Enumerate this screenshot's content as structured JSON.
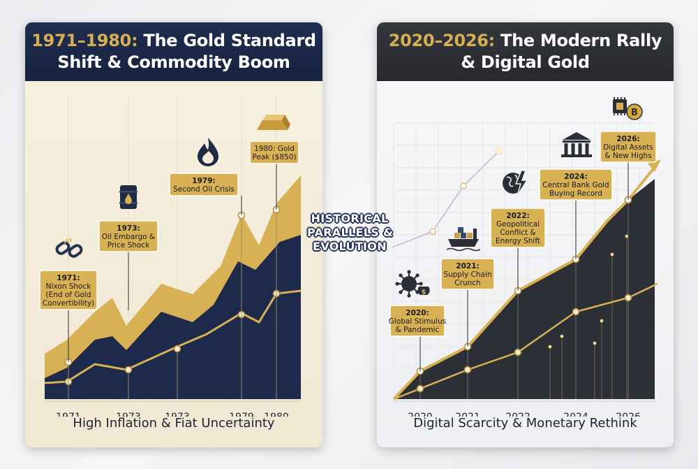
{
  "center_caption": [
    "HISTORICAL",
    "PARALLELS &",
    "EVOLUTION"
  ],
  "colors": {
    "gold": "#d9b155",
    "navy": "#1e2a4c",
    "charcoal": "#2c2f35",
    "marker_fill": "#f3ead0"
  },
  "chart_data": [
    {
      "type": "area",
      "title_lines": [
        "1971–1980: The Gold Standard",
        "Shift & Commodity Boom"
      ],
      "title_accent": "1971–1980:",
      "footer": "High Inflation & Fiat Uncertainty",
      "categories": [
        "1971",
        "1973",
        "1973",
        "1979",
        "1980"
      ],
      "callouts": [
        {
          "lines": [
            "1971:",
            "Nixon Shock",
            "(End of Gold",
            "Convertibility)"
          ],
          "icon": "broken-chain-icon"
        },
        {
          "lines": [
            "1973:",
            "Oil Embargo &",
            "Price Shock"
          ],
          "icon": "oil-barrel-icon"
        },
        {
          "lines": [
            "1979:",
            "Second Oil Crisis"
          ],
          "icon": "flame-icon"
        },
        {
          "lines": [
            "1980: Gold",
            "Peak ($850)"
          ],
          "icon": "gold-bar-icon"
        }
      ]
    },
    {
      "type": "area",
      "title_lines": [
        "2020–2026: The Modern Rally",
        "& Digital Gold"
      ],
      "title_accent": "2020–2026:",
      "footer": "Digital Scarcity & Monetary Rethink",
      "categories": [
        "2020",
        "2021",
        "2022",
        "2024",
        "2026"
      ],
      "callouts": [
        {
          "lines": [
            "2020:",
            "Global Stimulus",
            "& Pandemic"
          ],
          "icon": "virus-money-icon"
        },
        {
          "lines": [
            "2021:",
            "Supply Chain",
            "Crunch"
          ],
          "icon": "cargo-ship-icon"
        },
        {
          "lines": [
            "2022:",
            "Geopolitical",
            "Conflict &",
            "Energy Shift"
          ],
          "icon": "globe-lightning-icon"
        },
        {
          "lines": [
            "2024:",
            "Central Bank Gold",
            "Buying Record"
          ],
          "icon": "bank-building-icon"
        },
        {
          "lines": [
            "2026:",
            "Digital Assets",
            "& New Highs"
          ],
          "icon": "chip-bitcoin-icon"
        }
      ]
    }
  ]
}
